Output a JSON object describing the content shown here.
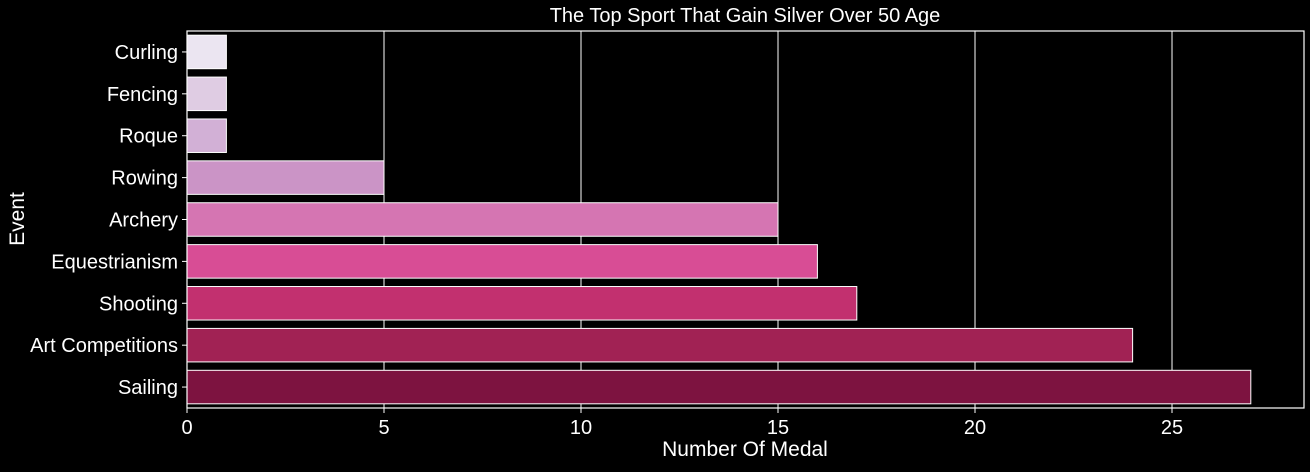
{
  "chart_data": {
    "type": "bar",
    "orientation": "horizontal",
    "title": "The Top Sport That Gain Silver Over 50 Age",
    "xlabel": "Number Of Medal",
    "ylabel": "Event",
    "categories": [
      "Curling",
      "Fencing",
      "Roque",
      "Rowing",
      "Archery",
      "Equestrianism",
      "Shooting",
      "Art Competitions",
      "Sailing"
    ],
    "values": [
      1,
      1,
      1,
      5,
      15,
      16,
      17,
      24,
      27
    ],
    "colors": [
      "#ebe5f1",
      "#dfcce3",
      "#d2b0d6",
      "#cb94c6",
      "#d575b2",
      "#d84d95",
      "#c2306f",
      "#a12254",
      "#7d1340"
    ],
    "xlim": [
      0,
      28.35
    ],
    "xticks": [
      0,
      5,
      10,
      15,
      20,
      25
    ],
    "xtick_labels": [
      "0",
      "5",
      "10",
      "15",
      "20",
      "25"
    ],
    "grid": "vertical",
    "background": "#000000",
    "text_color": "#ffffff"
  }
}
